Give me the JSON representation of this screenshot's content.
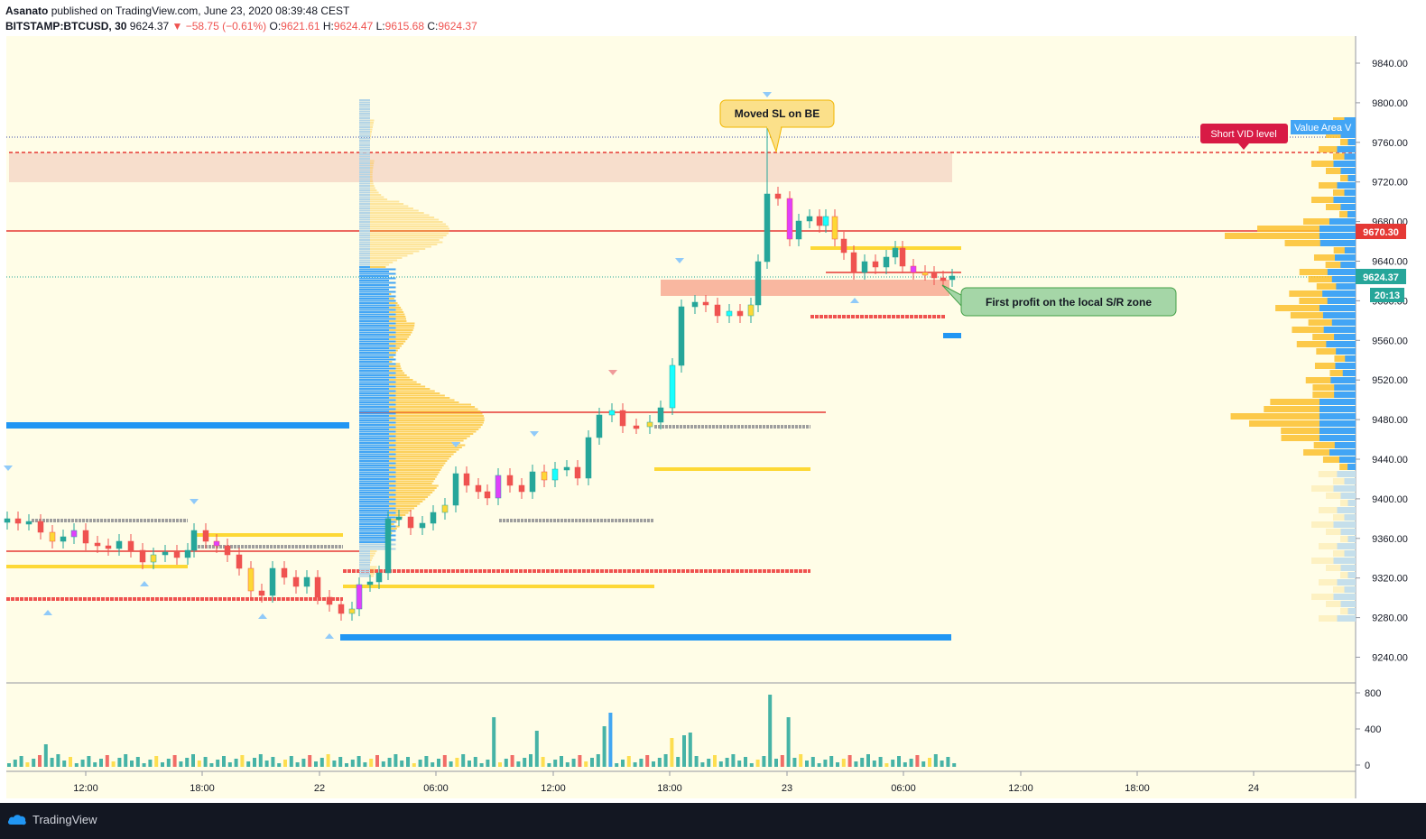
{
  "header": {
    "author": "Asanato",
    "published_text": "published on TradingView.com, June 23, 2020 08:39:48 CEST",
    "symbol": "BITSTAMP:BTCUSD, 30",
    "last_price": "9624.37",
    "change": "▼ −58.75 (−0.61%)",
    "o_label": "O:",
    "o_value": "9621.61",
    "h_label": "H:",
    "h_value": "9624.47",
    "l_label": "L:",
    "l_value": "9615.68",
    "c_label": "C:",
    "c_value": "9624.37"
  },
  "price_axis": {
    "ticks": [
      "9840.00",
      "9800.00",
      "9760.00",
      "9720.00",
      "9680.00",
      "9640.00",
      "9600.00",
      "9560.00",
      "9520.00",
      "9480.00",
      "9440.00",
      "9400.00",
      "9360.00",
      "9320.00",
      "9280.00",
      "9240.00"
    ],
    "marker_red": "9670.30",
    "marker_current": "9624.37",
    "marker_countdown": "20:13"
  },
  "volume_axis": {
    "ticks": [
      "800",
      "400",
      "0"
    ]
  },
  "time_axis": {
    "ticks": [
      "12:00",
      "18:00",
      "22",
      "06:00",
      "12:00",
      "18:00",
      "23",
      "06:00",
      "12:00",
      "18:00",
      "24"
    ]
  },
  "annotations": {
    "moved_sl": "Moved SL on BE",
    "first_profit": "First profit on the local S/R zone",
    "short_vid": "Short VID level",
    "value_area": "Value Area V"
  },
  "colors": {
    "background": "#fffde7",
    "up_candle": "#26a69a",
    "down_candle": "#ef5350",
    "red_line": "#e53935",
    "blue_profile": "#42a5f5",
    "yellow_profile": "#fbc02d",
    "callout_yellow": "#fbe08a",
    "callout_green": "#a5d6a7",
    "vid_badge": "#d81b45"
  },
  "footer": {
    "brand": "TradingView"
  }
}
